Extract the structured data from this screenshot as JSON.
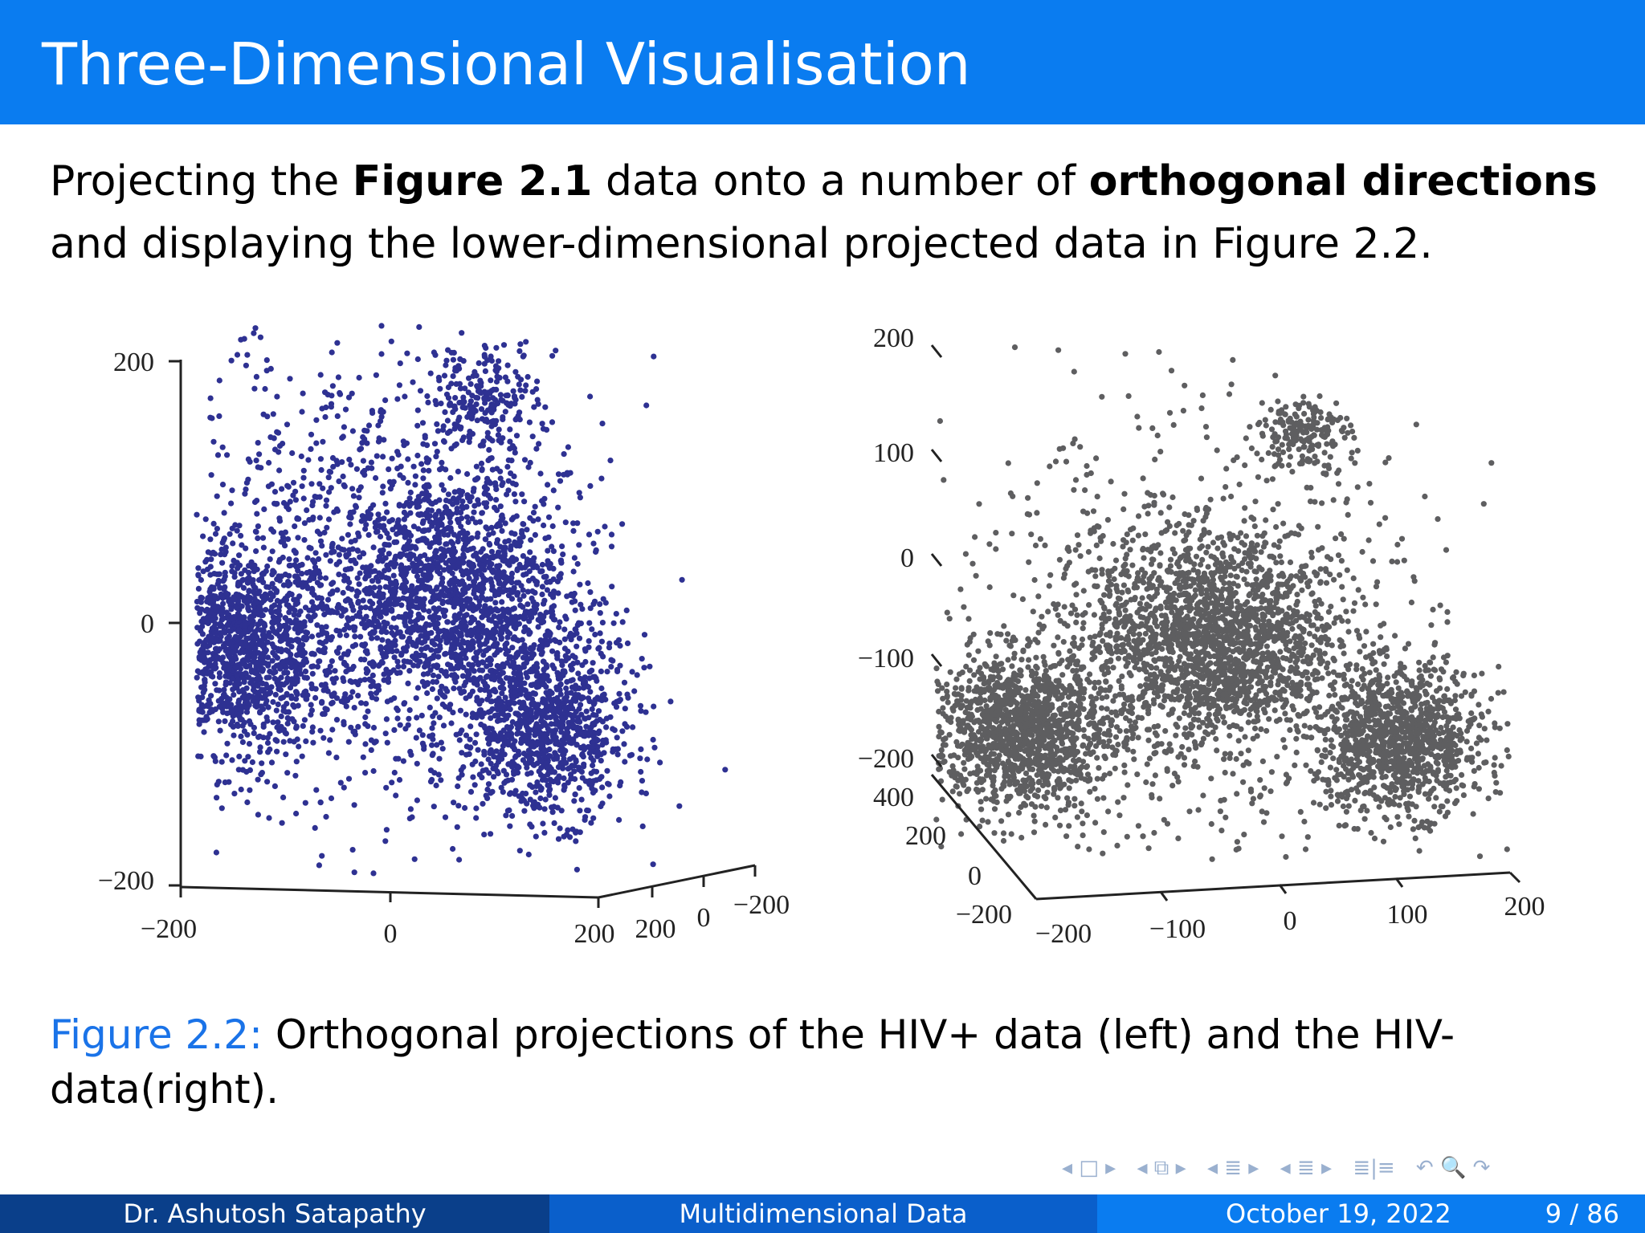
{
  "slide": {
    "title": "Three-Dimensional Visualisation",
    "body_line1_a": "Projecting the ",
    "body_line1_b": "Figure 2.1",
    "body_line1_c": " data onto a number of ",
    "body_line1_d": "orthogonal directions",
    "body_line2": "and displaying the lower-dimensional projected data in Figure 2.2.",
    "caption_label": "Figure 2.2:",
    "caption_text1": " Orthogonal projections of the HIV+ data (left) and the HIV-",
    "caption_text2": "data(right)."
  },
  "footer": {
    "author": "Dr. Ashutosh Satapathy",
    "topic": "Multidimensional Data",
    "date": "October 19, 2022",
    "page": "9 / 86"
  },
  "nav": {
    "icons": [
      "nav-frame-icon",
      "nav-subsection-icon",
      "nav-section-icon",
      "nav-presentation-icon",
      "nav-appendix-icon",
      "nav-search-icon"
    ]
  },
  "colors": {
    "title_bar": "#0a7cf0",
    "left_points": "#2e3192",
    "right_points": "#5e5e60",
    "caption_label": "#1a73e8"
  },
  "chart_data": [
    {
      "type": "scatter",
      "title": "",
      "series_color": "#2e3192",
      "y_ticks": [
        "200",
        "0",
        "−200"
      ],
      "x_ticks": [
        "−200",
        "0",
        "200"
      ],
      "z_ticks": [
        "200",
        "0",
        "−200"
      ],
      "ylim": [
        -200,
        200
      ],
      "clusters": [
        {
          "x": -140,
          "y": -20,
          "spread": 45,
          "n": 1300
        },
        {
          "x": 60,
          "y": 20,
          "spread": 55,
          "n": 1500
        },
        {
          "x": 150,
          "y": -80,
          "spread": 40,
          "n": 1000
        },
        {
          "x": 90,
          "y": 170,
          "spread": 25,
          "n": 200
        },
        {
          "x": -20,
          "y": 40,
          "spread": 110,
          "n": 1100
        }
      ]
    },
    {
      "type": "scatter",
      "title": "",
      "series_color": "#5e5e60",
      "y_ticks": [
        "200",
        "100",
        "0",
        "−100",
        "−200"
      ],
      "x_ticks": [
        "−200",
        "−100",
        "0",
        "100",
        "200"
      ],
      "z_ticks": [
        "400",
        "200",
        "0",
        "−200"
      ],
      "ylim": [
        -200,
        200
      ],
      "clusters": [
        {
          "x": -200,
          "y": -120,
          "spread": 40,
          "n": 1300
        },
        {
          "x": -20,
          "y": -40,
          "spread": 55,
          "n": 1600
        },
        {
          "x": 150,
          "y": -130,
          "spread": 38,
          "n": 1100
        },
        {
          "x": 60,
          "y": 150,
          "spread": 20,
          "n": 180
        },
        {
          "x": -40,
          "y": -40,
          "spread": 110,
          "n": 1000
        }
      ]
    }
  ]
}
